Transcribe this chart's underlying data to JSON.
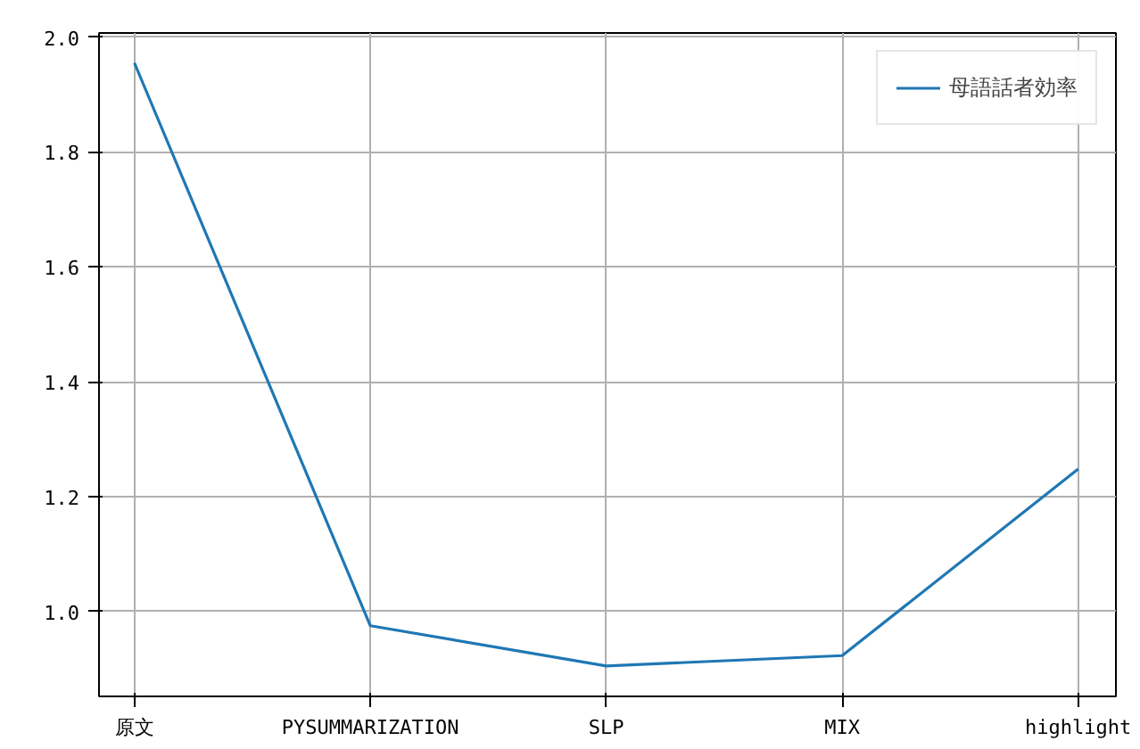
{
  "chart_data": {
    "type": "line",
    "categories": [
      "原文",
      "PYSUMMARIZATION",
      "SLP",
      "MIX",
      "highlight"
    ],
    "series": [
      {
        "name": "母語話者効率",
        "color": "#1f77b4",
        "values": [
          1.955,
          0.975,
          0.905,
          0.923,
          1.248
        ]
      }
    ],
    "ylim": [
      0.852,
      2.007
    ],
    "yticks": [
      {
        "value": 1,
        "label": "1.0"
      },
      1.2,
      1.4,
      1.6,
      1.8,
      {
        "value": 2,
        "label": "2.0"
      }
    ],
    "grid": true,
    "legend": "top right",
    "marker": "none",
    "line_style": "solid"
  }
}
